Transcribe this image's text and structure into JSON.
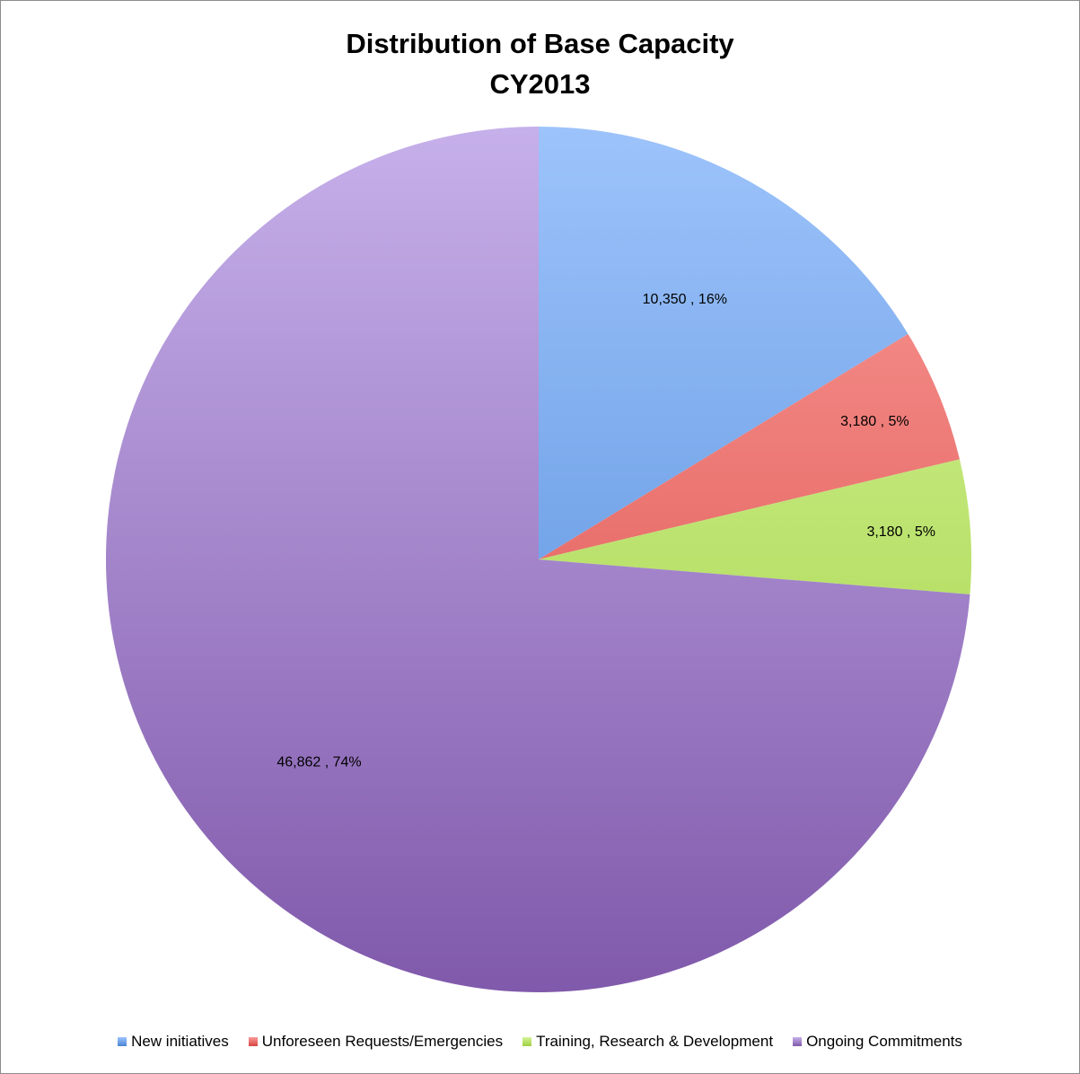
{
  "chart_data": {
    "type": "pie",
    "title": "Distribution of Base Capacity",
    "subtitle": "CY2013",
    "slices": [
      {
        "name": "New initiatives",
        "value": 10350,
        "percent": 16,
        "label": "10,350 , 16%",
        "color": "#4a86d6",
        "light": "#9dc3fb"
      },
      {
        "name": "Unforeseen Requests/Emergencies",
        "value": 3180,
        "percent": 5,
        "label": "3,180 , 5%",
        "color": "#d64540",
        "light": "#fb9b98"
      },
      {
        "name": "Training, Research & Development",
        "value": 3180,
        "percent": 5,
        "label": "3,180 , 5%",
        "color": "#9fd140",
        "light": "#d6f39a"
      },
      {
        "name": "Ongoing Commitments",
        "value": 46862,
        "percent": 74,
        "label": "46,862 , 74%",
        "color": "#8059ab",
        "light": "#c6b0ea"
      }
    ],
    "start_angle": "12 o'clock",
    "direction": "clockwise",
    "legend_position": "bottom"
  }
}
